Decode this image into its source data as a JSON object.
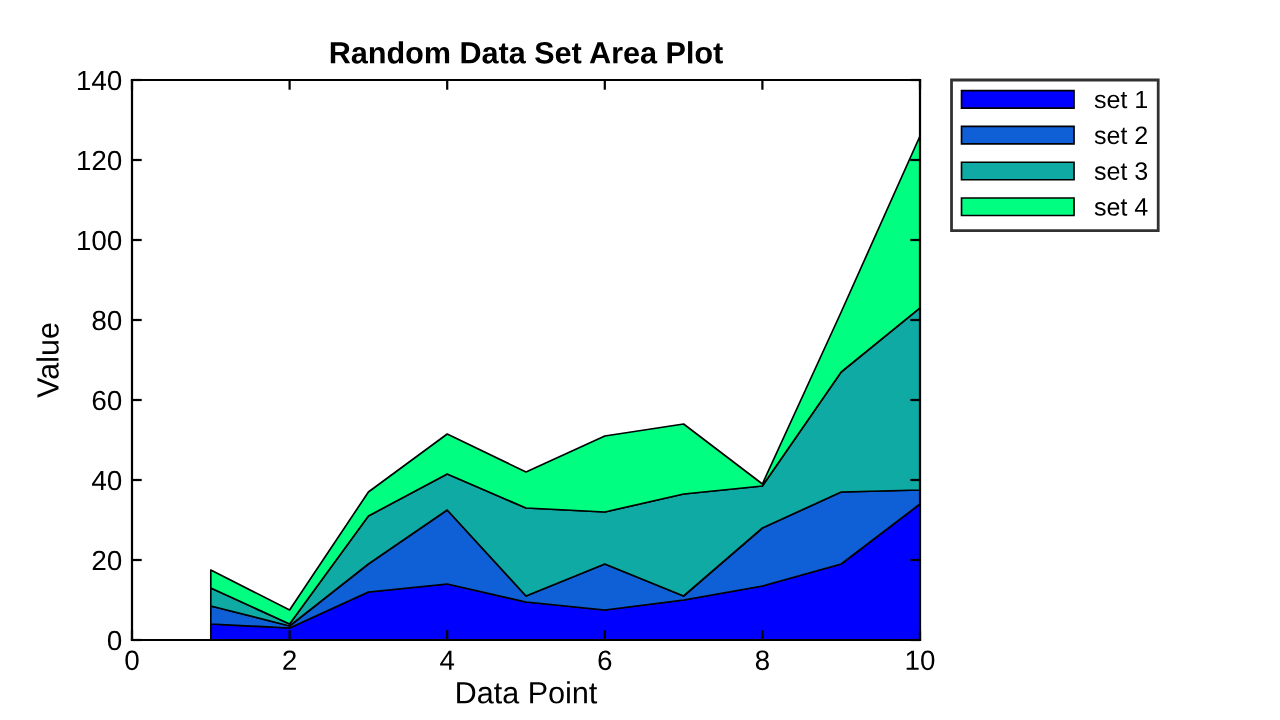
{
  "chart_data": {
    "type": "area",
    "stacked": true,
    "title": "Random Data Set Area Plot",
    "xlabel": "Data Point",
    "ylabel": "Value",
    "x": [
      1,
      2,
      3,
      4,
      5,
      6,
      7,
      8,
      9,
      10
    ],
    "series": [
      {
        "name": "set 1",
        "color": "#0000ff",
        "values": [
          4,
          3,
          12,
          14,
          9.5,
          7.5,
          10,
          13.5,
          19,
          34
        ]
      },
      {
        "name": "set 2",
        "color": "#0f5fd7",
        "values": [
          4.5,
          0.5,
          7,
          18.5,
          1.5,
          11.5,
          1,
          14.5,
          18,
          3.5
        ]
      },
      {
        "name": "set 3",
        "color": "#10aaa5",
        "values": [
          4.5,
          0.5,
          12,
          9,
          22,
          13,
          25.5,
          10.5,
          30,
          45.5
        ]
      },
      {
        "name": "set 4",
        "color": "#00ff80",
        "values": [
          4.5,
          3.5,
          6,
          10,
          9,
          19,
          17.5,
          0.5,
          15,
          43
        ]
      }
    ],
    "xlim": [
      0,
      10
    ],
    "xticks": [
      0,
      2,
      4,
      6,
      8,
      10
    ],
    "ylim": [
      0,
      140
    ],
    "yticks": [
      0,
      20,
      40,
      60,
      80,
      100,
      120,
      140
    ],
    "grid": false,
    "legend": "top right"
  }
}
